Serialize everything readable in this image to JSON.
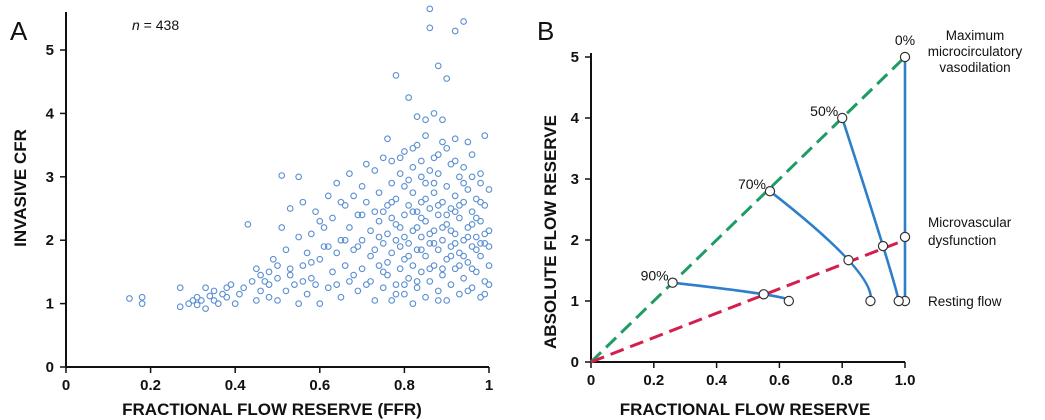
{
  "panel_a_letter": "A",
  "panel_b_letter": "B",
  "colors": {
    "scatter_point": "#5b8fd1",
    "curve_blue": "#2e7ec9",
    "green_dash": "#1f9c63",
    "red_dash": "#d41f4e",
    "axis": "#111111"
  },
  "chart_data": [
    {
      "type": "scatter",
      "panel": "A",
      "annotation_prefix": "n",
      "annotation_suffix": " = 438",
      "xlabel": "FRACTIONAL FLOW RESERVE (FFR)",
      "ylabel": "INVASIVE CFR",
      "xlim": [
        0,
        1
      ],
      "ylim": [
        0,
        5.6
      ],
      "xticks": [
        "0",
        "0.2",
        "0.4",
        "0.6",
        "0.8",
        "1"
      ],
      "yticks": [
        "0",
        "1",
        "2",
        "3",
        "4",
        "5"
      ],
      "grid": false,
      "points": [
        [
          0.15,
          1.08
        ],
        [
          0.18,
          1.0
        ],
        [
          0.18,
          1.1
        ],
        [
          0.27,
          0.95
        ],
        [
          0.27,
          1.25
        ],
        [
          0.29,
          1.0
        ],
        [
          0.3,
          1.05
        ],
        [
          0.31,
          1.1
        ],
        [
          0.32,
          1.05
        ],
        [
          0.33,
          0.92
        ],
        [
          0.33,
          1.25
        ],
        [
          0.35,
          1.05
        ],
        [
          0.35,
          1.2
        ],
        [
          0.36,
          1.0
        ],
        [
          0.37,
          1.15
        ],
        [
          0.38,
          1.25
        ],
        [
          0.39,
          1.3
        ],
        [
          0.4,
          1.0
        ],
        [
          0.42,
          1.25
        ],
        [
          0.43,
          2.25
        ],
        [
          0.45,
          1.05
        ],
        [
          0.45,
          1.55
        ],
        [
          0.46,
          1.2
        ],
        [
          0.47,
          1.35
        ],
        [
          0.48,
          1.5
        ],
        [
          0.48,
          1.1
        ],
        [
          0.49,
          1.7
        ],
        [
          0.5,
          1.05
        ],
        [
          0.5,
          1.4
        ],
        [
          0.51,
          2.2
        ],
        [
          0.51,
          3.02
        ],
        [
          0.52,
          1.2
        ],
        [
          0.53,
          1.55
        ],
        [
          0.53,
          2.5
        ],
        [
          0.54,
          1.3
        ],
        [
          0.55,
          1.0
        ],
        [
          0.55,
          3.0
        ],
        [
          0.56,
          1.6
        ],
        [
          0.56,
          2.6
        ],
        [
          0.57,
          1.8
        ],
        [
          0.57,
          1.15
        ],
        [
          0.58,
          1.4
        ],
        [
          0.58,
          2.1
        ],
        [
          0.59,
          1.3
        ],
        [
          0.59,
          2.45
        ],
        [
          0.6,
          1.7
        ],
        [
          0.6,
          1.0
        ],
        [
          0.61,
          2.2
        ],
        [
          0.61,
          1.9
        ],
        [
          0.62,
          1.25
        ],
        [
          0.62,
          2.7
        ],
        [
          0.63,
          1.5
        ],
        [
          0.63,
          2.35
        ],
        [
          0.64,
          1.8
        ],
        [
          0.64,
          2.9
        ],
        [
          0.65,
          1.1
        ],
        [
          0.65,
          2.0
        ],
        [
          0.66,
          1.6
        ],
        [
          0.66,
          2.55
        ],
        [
          0.67,
          1.35
        ],
        [
          0.67,
          2.2
        ],
        [
          0.67,
          3.05
        ],
        [
          0.68,
          1.85
        ],
        [
          0.68,
          2.7
        ],
        [
          0.69,
          1.2
        ],
        [
          0.69,
          2.4
        ],
        [
          0.7,
          1.55
        ],
        [
          0.7,
          2.0
        ],
        [
          0.7,
          2.85
        ],
        [
          0.71,
          1.3
        ],
        [
          0.71,
          2.6
        ],
        [
          0.71,
          3.2
        ],
        [
          0.72,
          1.75
        ],
        [
          0.72,
          2.15
        ],
        [
          0.73,
          1.05
        ],
        [
          0.73,
          2.45
        ],
        [
          0.73,
          3.1
        ],
        [
          0.74,
          1.6
        ],
        [
          0.74,
          2.3
        ],
        [
          0.74,
          2.75
        ],
        [
          0.75,
          1.25
        ],
        [
          0.75,
          1.95
        ],
        [
          0.75,
          3.3
        ],
        [
          0.76,
          1.45
        ],
        [
          0.76,
          2.1
        ],
        [
          0.76,
          2.55
        ],
        [
          0.76,
          3.6
        ],
        [
          0.77,
          1.05
        ],
        [
          0.77,
          1.8
        ],
        [
          0.77,
          2.35
        ],
        [
          0.77,
          2.9
        ],
        [
          0.78,
          1.3
        ],
        [
          0.78,
          2.0
        ],
        [
          0.78,
          2.65
        ],
        [
          0.78,
          4.6
        ],
        [
          0.79,
          1.55
        ],
        [
          0.79,
          2.2
        ],
        [
          0.79,
          3.05
        ],
        [
          0.8,
          1.15
        ],
        [
          0.8,
          1.7
        ],
        [
          0.8,
          2.4
        ],
        [
          0.8,
          2.85
        ],
        [
          0.8,
          3.4
        ],
        [
          0.81,
          1.4
        ],
        [
          0.81,
          1.95
        ],
        [
          0.81,
          2.55
        ],
        [
          0.81,
          4.25
        ],
        [
          0.82,
          1.0
        ],
        [
          0.82,
          1.6
        ],
        [
          0.82,
          2.15
        ],
        [
          0.82,
          2.75
        ],
        [
          0.82,
          3.15
        ],
        [
          0.83,
          1.25
        ],
        [
          0.83,
          1.85
        ],
        [
          0.83,
          2.45
        ],
        [
          0.83,
          3.5
        ],
        [
          0.84,
          1.5
        ],
        [
          0.84,
          2.05
        ],
        [
          0.84,
          2.6
        ],
        [
          0.84,
          3.0
        ],
        [
          0.85,
          1.1
        ],
        [
          0.85,
          1.75
        ],
        [
          0.85,
          2.3
        ],
        [
          0.85,
          2.9
        ],
        [
          0.85,
          3.9
        ],
        [
          0.86,
          1.35
        ],
        [
          0.86,
          1.95
        ],
        [
          0.86,
          2.5
        ],
        [
          0.86,
          5.65
        ],
        [
          0.86,
          5.35
        ],
        [
          0.87,
          1.6
        ],
        [
          0.87,
          2.15
        ],
        [
          0.87,
          2.75
        ],
        [
          0.87,
          3.3
        ],
        [
          0.88,
          1.2
        ],
        [
          0.88,
          1.85
        ],
        [
          0.88,
          2.4
        ],
        [
          0.88,
          3.05
        ],
        [
          0.88,
          4.75
        ],
        [
          0.89,
          1.45
        ],
        [
          0.89,
          2.0
        ],
        [
          0.89,
          2.6
        ],
        [
          0.89,
          3.55
        ],
        [
          0.9,
          1.05
        ],
        [
          0.9,
          1.7
        ],
        [
          0.9,
          2.25
        ],
        [
          0.9,
          2.85
        ],
        [
          0.9,
          4.55
        ],
        [
          0.91,
          1.3
        ],
        [
          0.91,
          1.9
        ],
        [
          0.91,
          2.5
        ],
        [
          0.91,
          3.2
        ],
        [
          0.92,
          1.55
        ],
        [
          0.92,
          2.1
        ],
        [
          0.92,
          2.7
        ],
        [
          0.92,
          5.3
        ],
        [
          0.93,
          1.15
        ],
        [
          0.93,
          1.8
        ],
        [
          0.93,
          2.35
        ],
        [
          0.93,
          3.0
        ],
        [
          0.94,
          1.4
        ],
        [
          0.94,
          2.0
        ],
        [
          0.94,
          2.6
        ],
        [
          0.94,
          5.45
        ],
        [
          0.95,
          1.65
        ],
        [
          0.95,
          2.2
        ],
        [
          0.95,
          2.8
        ],
        [
          0.96,
          1.25
        ],
        [
          0.96,
          1.9
        ],
        [
          0.96,
          2.45
        ],
        [
          0.96,
          3.35
        ],
        [
          0.97,
          1.5
        ],
        [
          0.97,
          2.05
        ],
        [
          0.97,
          2.65
        ],
        [
          0.98,
          1.1
        ],
        [
          0.98,
          1.75
        ],
        [
          0.98,
          2.3
        ],
        [
          0.98,
          3.05
        ],
        [
          0.99,
          1.35
        ],
        [
          0.99,
          1.95
        ],
        [
          0.99,
          2.55
        ],
        [
          0.99,
          3.65
        ],
        [
          1.0,
          1.6
        ],
        [
          1.0,
          2.15
        ],
        [
          1.0,
          1.3
        ],
        [
          1.0,
          2.8
        ],
        [
          0.76,
          1.65
        ],
        [
          0.78,
          1.15
        ],
        [
          0.8,
          2.05
        ],
        [
          0.81,
          2.95
        ],
        [
          0.83,
          1.35
        ],
        [
          0.84,
          2.35
        ],
        [
          0.86,
          1.55
        ],
        [
          0.87,
          2.9
        ],
        [
          0.88,
          1.05
        ],
        [
          0.89,
          2.2
        ],
        [
          0.91,
          1.75
        ],
        [
          0.92,
          2.45
        ],
        [
          0.93,
          1.6
        ],
        [
          0.94,
          2.9
        ],
        [
          0.95,
          1.2
        ],
        [
          0.96,
          2.25
        ],
        [
          0.97,
          1.85
        ],
        [
          0.98,
          2.6
        ],
        [
          0.99,
          1.15
        ],
        [
          1.0,
          1.9
        ],
        [
          0.74,
          2.05
        ],
        [
          0.75,
          1.5
        ],
        [
          0.77,
          2.6
        ],
        [
          0.79,
          1.9
        ],
        [
          0.8,
          1.3
        ],
        [
          0.82,
          2.45
        ],
        [
          0.84,
          1.85
        ],
        [
          0.85,
          2.65
        ],
        [
          0.87,
          1.95
        ],
        [
          0.89,
          1.55
        ],
        [
          0.9,
          2.4
        ],
        [
          0.92,
          1.95
        ],
        [
          0.93,
          2.55
        ],
        [
          0.95,
          2.05
        ],
        [
          0.97,
          2.35
        ],
        [
          0.99,
          2.1
        ],
        [
          0.72,
          1.35
        ],
        [
          0.73,
          1.85
        ],
        [
          0.75,
          2.45
        ],
        [
          0.78,
          2.25
        ],
        [
          0.81,
          1.75
        ],
        [
          0.83,
          2.2
        ],
        [
          0.86,
          2.1
        ],
        [
          0.88,
          2.55
        ],
        [
          0.91,
          2.15
        ],
        [
          0.94,
          1.75
        ],
        [
          0.96,
          1.55
        ],
        [
          0.98,
          1.95
        ],
        [
          0.7,
          2.4
        ],
        [
          0.69,
          1.9
        ],
        [
          0.68,
          1.45
        ],
        [
          0.66,
          2.0
        ],
        [
          0.65,
          2.6
        ],
        [
          0.64,
          1.3
        ],
        [
          0.62,
          1.9
        ],
        [
          0.6,
          2.3
        ],
        [
          0.58,
          1.65
        ],
        [
          0.56,
          1.35
        ],
        [
          0.55,
          2.05
        ],
        [
          0.53,
          1.45
        ],
        [
          0.52,
          1.85
        ],
        [
          0.5,
          1.6
        ],
        [
          0.48,
          1.3
        ],
        [
          0.46,
          1.45
        ],
        [
          0.44,
          1.35
        ],
        [
          0.41,
          1.15
        ],
        [
          0.38,
          1.1
        ],
        [
          0.34,
          1.12
        ],
        [
          0.31,
          0.98
        ],
        [
          0.82,
          3.45
        ],
        [
          0.84,
          3.25
        ],
        [
          0.86,
          3.1
        ],
        [
          0.88,
          3.35
        ],
        [
          0.9,
          3.45
        ],
        [
          0.92,
          3.25
        ],
        [
          0.94,
          3.15
        ],
        [
          0.96,
          3.0
        ],
        [
          0.98,
          2.9
        ],
        [
          0.87,
          4.0
        ],
        [
          0.89,
          3.9
        ],
        [
          0.92,
          3.6
        ],
        [
          0.95,
          3.55
        ],
        [
          0.85,
          3.65
        ],
        [
          0.83,
          3.95
        ],
        [
          0.79,
          3.3
        ],
        [
          0.77,
          3.25
        ]
      ]
    },
    {
      "type": "line",
      "panel": "B",
      "xlabel": "FRACTIONAL FLOW RESERVE",
      "ylabel": "ABSOLUTE FLOW RESERVE",
      "xlim": [
        0,
        1
      ],
      "ylim": [
        0,
        5
      ],
      "xticks": [
        "0",
        "0.2",
        "0.4",
        "0.6",
        "0.8",
        "1.0"
      ],
      "yticks": [
        "0",
        "1",
        "2",
        "3",
        "4",
        "5"
      ],
      "grid": false,
      "dashed_lines": [
        {
          "color_key": "green_dash",
          "from": [
            0,
            0
          ],
          "to": [
            1.0,
            5.0
          ]
        },
        {
          "color_key": "red_dash",
          "from": [
            0,
            0
          ],
          "to": [
            1.0,
            2.0
          ]
        }
      ],
      "curves": [
        {
          "points": [
            [
              1.0,
              5.0
            ],
            [
              1.0,
              2.05
            ],
            [
              1.0,
              1.0
            ]
          ]
        },
        {
          "points": [
            [
              0.8,
              4.0
            ],
            [
              0.93,
              1.9
            ],
            [
              0.98,
              1.0
            ]
          ]
        },
        {
          "points": [
            [
              0.57,
              2.8
            ],
            [
              0.82,
              1.67
            ],
            [
              0.89,
              1.0
            ]
          ]
        },
        {
          "points": [
            [
              0.26,
              1.3
            ],
            [
              0.55,
              1.11
            ],
            [
              0.63,
              1.0
            ]
          ]
        }
      ],
      "percent_labels": [
        {
          "text": "0%",
          "at": [
            1.0,
            5.0
          ]
        },
        {
          "text": "50%",
          "at": [
            0.8,
            4.0
          ]
        },
        {
          "text": "70%",
          "at": [
            0.57,
            2.8
          ]
        },
        {
          "text": "90%",
          "at": [
            0.26,
            1.3
          ]
        }
      ],
      "annotations": {
        "max_vasodilation": [
          "Maximum",
          "microcirculatory",
          "vasodilation"
        ],
        "microvascular": [
          "Microvascular",
          "dysfunction"
        ],
        "resting": "Resting flow"
      }
    }
  ]
}
